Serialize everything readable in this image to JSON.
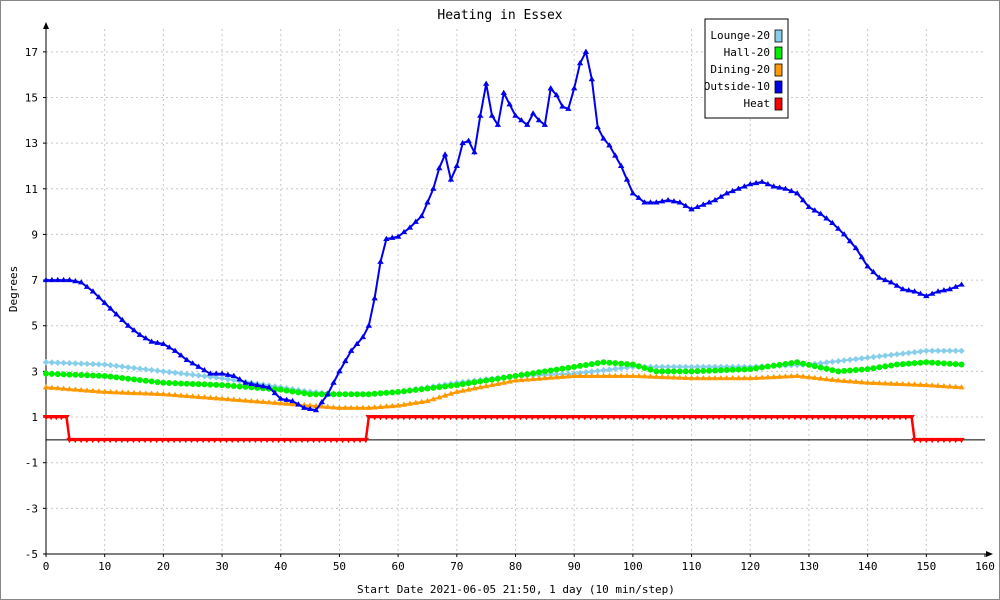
{
  "chart_data": {
    "type": "line",
    "title": "Heating in Essex",
    "xlabel": "Start Date 2021-06-05 21:50, 1 day (10 min/step)",
    "ylabel": "Degrees",
    "xlim": [
      0,
      160
    ],
    "ylim": [
      -5,
      18
    ],
    "x_ticks": [
      0,
      10,
      20,
      30,
      40,
      50,
      60,
      70,
      80,
      90,
      100,
      110,
      120,
      130,
      140,
      150,
      160
    ],
    "y_ticks": [
      -5,
      -3,
      -1,
      1,
      3,
      5,
      7,
      9,
      11,
      13,
      15,
      17
    ],
    "grid": true,
    "legend_position": "top-right",
    "colors": {
      "background": "#ffffff",
      "plot_background": "#ffffff",
      "grid": "#c8c8c8",
      "axis": "#000000",
      "zero_line": "#000000"
    },
    "series": [
      {
        "name": "Lounge-20",
        "color": "#87ceeb",
        "marker": "diamond",
        "x": [
          0,
          10,
          20,
          30,
          40,
          45,
          50,
          55,
          60,
          70,
          80,
          90,
          100,
          110,
          120,
          130,
          140,
          150,
          156
        ],
        "y": [
          3.4,
          3.3,
          3.0,
          2.7,
          2.3,
          2.1,
          2.0,
          2.0,
          2.1,
          2.5,
          2.8,
          2.9,
          3.2,
          3.2,
          3.2,
          3.3,
          3.6,
          3.9,
          3.9
        ]
      },
      {
        "name": "Hall-20",
        "color": "#00ee00",
        "marker": "circle",
        "x": [
          0,
          10,
          20,
          30,
          40,
          45,
          50,
          55,
          60,
          70,
          80,
          90,
          95,
          100,
          104,
          110,
          120,
          128,
          135,
          140,
          145,
          150,
          156
        ],
        "y": [
          2.9,
          2.8,
          2.5,
          2.4,
          2.2,
          2.0,
          2.0,
          2.0,
          2.1,
          2.4,
          2.8,
          3.2,
          3.4,
          3.3,
          3.0,
          3.0,
          3.1,
          3.4,
          3.0,
          3.1,
          3.3,
          3.4,
          3.3
        ]
      },
      {
        "name": "Dining-20",
        "color": "#ff9900",
        "marker": "triangle",
        "x": [
          0,
          10,
          20,
          30,
          40,
          45,
          50,
          55,
          60,
          65,
          70,
          80,
          90,
          100,
          110,
          120,
          128,
          135,
          140,
          150,
          156
        ],
        "y": [
          2.3,
          2.1,
          2.0,
          1.8,
          1.6,
          1.5,
          1.4,
          1.4,
          1.5,
          1.7,
          2.1,
          2.6,
          2.8,
          2.8,
          2.7,
          2.7,
          2.8,
          2.6,
          2.5,
          2.4,
          2.3
        ]
      },
      {
        "name": "Outside-10",
        "color": "#0000ee",
        "marker": "triangle",
        "x": [
          0,
          2,
          4,
          6,
          8,
          10,
          12,
          14,
          16,
          18,
          20,
          22,
          24,
          26,
          28,
          30,
          32,
          34,
          36,
          38,
          40,
          42,
          44,
          46,
          48,
          50,
          52,
          54,
          55,
          56,
          57,
          58,
          60,
          62,
          64,
          66,
          67,
          68,
          69,
          70,
          71,
          72,
          73,
          74,
          75,
          76,
          77,
          78,
          80,
          82,
          83,
          84,
          85,
          86,
          87,
          88,
          89,
          90,
          91,
          92,
          93,
          94,
          95,
          96,
          98,
          100,
          102,
          104,
          106,
          108,
          110,
          112,
          114,
          116,
          118,
          120,
          122,
          124,
          126,
          128,
          130,
          132,
          134,
          136,
          138,
          140,
          142,
          144,
          146,
          148,
          150,
          152,
          154,
          156
        ],
        "y": [
          7.0,
          7.0,
          7.0,
          6.9,
          6.5,
          6.0,
          5.5,
          5.0,
          4.6,
          4.3,
          4.2,
          3.9,
          3.5,
          3.2,
          2.9,
          2.9,
          2.8,
          2.5,
          2.4,
          2.3,
          1.8,
          1.7,
          1.4,
          1.3,
          2.0,
          3.0,
          3.9,
          4.5,
          5.0,
          6.2,
          7.8,
          8.8,
          8.9,
          9.3,
          9.8,
          11.0,
          11.9,
          12.5,
          11.4,
          12.0,
          13.0,
          13.1,
          12.6,
          14.2,
          15.6,
          14.2,
          13.8,
          15.2,
          14.2,
          13.8,
          14.3,
          14.0,
          13.8,
          15.4,
          15.1,
          14.6,
          14.5,
          15.4,
          16.5,
          17.0,
          15.8,
          13.7,
          13.2,
          12.9,
          12.0,
          10.8,
          10.4,
          10.4,
          10.5,
          10.4,
          10.1,
          10.3,
          10.5,
          10.8,
          11.0,
          11.2,
          11.3,
          11.1,
          11.0,
          10.8,
          10.2,
          9.9,
          9.5,
          9.0,
          8.4,
          7.6,
          7.1,
          6.9,
          6.6,
          6.5,
          6.3,
          6.5,
          6.6,
          6.8
        ]
      },
      {
        "name": "Heat",
        "color": "#ff0000",
        "marker": "triangle-down",
        "x": [
          0,
          3.5,
          4,
          54.5,
          55,
          147.5,
          148,
          156
        ],
        "y": [
          1,
          1,
          0,
          0,
          1,
          1,
          0,
          0
        ]
      }
    ]
  }
}
